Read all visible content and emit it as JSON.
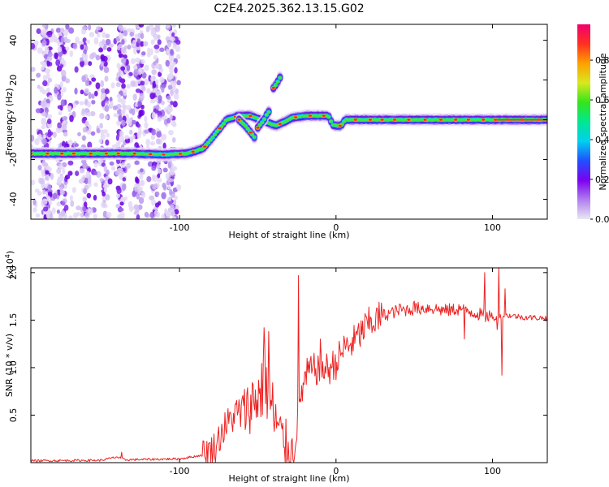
{
  "title": "C2E4.2025.362.13.15.G02",
  "chart_data": [
    {
      "type": "heatmap",
      "name": "spectrogram",
      "xlabel": "Height of straight line (km)",
      "ylabel": "Frequency (Hz)",
      "xlim": [
        -195,
        135
      ],
      "ylim": [
        -50,
        48
      ],
      "x_ticks": [
        -100,
        0,
        100
      ],
      "x_tick_labels": [
        "-100",
        "0",
        "100"
      ],
      "y_ticks": [
        -40,
        -20,
        0,
        20,
        40
      ],
      "y_tick_labels": [
        "-40",
        "-20",
        "0",
        "20",
        "40"
      ],
      "noise_region_x": [
        -195,
        -100
      ],
      "noise_frequency_range": [
        -50,
        48
      ],
      "tracks": [
        {
          "name": "main-trace",
          "points": [
            [
              -195,
              -17
            ],
            [
              -160,
              -17
            ],
            [
              -130,
              -17
            ],
            [
              -110,
              -17.5
            ],
            [
              -95,
              -17
            ],
            [
              -85,
              -14.5
            ],
            [
              -80,
              -10
            ],
            [
              -75,
              -5
            ],
            [
              -70,
              0
            ],
            [
              -62,
              2
            ],
            [
              -55,
              2
            ],
            [
              -48,
              0
            ],
            [
              -42,
              -2
            ],
            [
              -38,
              -3
            ],
            [
              -33,
              -1
            ],
            [
              -28,
              1
            ],
            [
              -20,
              2
            ],
            [
              -10,
              2
            ],
            [
              -5,
              2
            ],
            [
              -2,
              -2.5
            ],
            [
              0,
              -3
            ],
            [
              3,
              -3
            ],
            [
              6,
              0
            ],
            [
              15,
              0
            ],
            [
              40,
              0
            ],
            [
              70,
              0
            ],
            [
              100,
              0
            ],
            [
              105,
              0
            ],
            [
              135,
              0
            ]
          ]
        },
        {
          "name": "branch-trace",
          "points": [
            [
              -62,
              0
            ],
            [
              -58,
              -3
            ],
            [
              -55,
              -6
            ],
            [
              -52,
              -9
            ]
          ]
        },
        {
          "name": "upper-branch",
          "points": [
            [
              -50,
              -4
            ],
            [
              -46,
              0
            ],
            [
              -44,
              3
            ],
            [
              -42,
              5
            ]
          ]
        },
        {
          "name": "blob",
          "points": [
            [
              -40,
              16
            ],
            [
              -38,
              18
            ],
            [
              -36,
              21
            ],
            [
              -35,
              22
            ]
          ]
        }
      ],
      "colorbar": {
        "label": "Normalized spectral amplitude",
        "ticks": [
          0.0,
          0.2,
          0.4,
          0.6,
          0.8
        ],
        "tick_labels": [
          "0.0",
          "0.2",
          "0.4",
          "0.6",
          "0.8"
        ],
        "range": [
          0,
          0.98
        ],
        "colors": [
          "#e8e8f2",
          "#b07df0",
          "#7b00f0",
          "#2050ff",
          "#00d0f0",
          "#00e890",
          "#33e61a",
          "#d8e81e",
          "#ffa000",
          "#ff3020",
          "#f00070"
        ]
      }
    },
    {
      "type": "line",
      "name": "snr",
      "xlabel": "Height of straight line (km)",
      "ylabel": "SNR (10 * v/v)",
      "y_exponent_label": "(x10",
      "y_exponent_value": "4",
      "xlim": [
        -195,
        135
      ],
      "ylim": [
        0,
        2.05
      ],
      "x_ticks": [
        -100,
        0,
        100
      ],
      "x_tick_labels": [
        "-100",
        "0",
        "100"
      ],
      "y_ticks": [
        0.5,
        1.0,
        1.5,
        2.0
      ],
      "y_tick_labels": [
        "0.5",
        "1.0",
        "1.5",
        "2.0"
      ],
      "color": "#ee2222",
      "trend": [
        [
          -195,
          0.02
        ],
        [
          -150,
          0.025
        ],
        [
          -140,
          0.06
        ],
        [
          -135,
          0.03
        ],
        [
          -100,
          0.04
        ],
        [
          -85,
          0.08
        ],
        [
          -78,
          0.15
        ],
        [
          -72,
          0.35
        ],
        [
          -65,
          0.5
        ],
        [
          -58,
          0.55
        ],
        [
          -50,
          0.7
        ],
        [
          -45,
          0.85
        ],
        [
          -40,
          0.5
        ],
        [
          -35,
          0.25
        ],
        [
          -27,
          0.1
        ],
        [
          -25,
          0.4
        ],
        [
          -22,
          0.75
        ],
        [
          -18,
          0.95
        ],
        [
          -10,
          1.0
        ],
        [
          -5,
          0.98
        ],
        [
          0,
          1.05
        ],
        [
          5,
          1.2
        ],
        [
          12,
          1.28
        ],
        [
          20,
          1.45
        ],
        [
          30,
          1.55
        ],
        [
          40,
          1.6
        ],
        [
          50,
          1.62
        ],
        [
          60,
          1.63
        ],
        [
          70,
          1.6
        ],
        [
          80,
          1.62
        ],
        [
          90,
          1.57
        ],
        [
          100,
          1.52
        ],
        [
          110,
          1.55
        ],
        [
          120,
          1.53
        ],
        [
          135,
          1.52
        ]
      ],
      "spikes": [
        [
          -137,
          0.11
        ],
        [
          -46,
          1.42
        ],
        [
          -43,
          1.38
        ],
        [
          -24,
          1.97
        ],
        [
          -10,
          1.3
        ],
        [
          41,
          1.67
        ],
        [
          50,
          1.7
        ],
        [
          82,
          1.3
        ],
        [
          95,
          2.0
        ],
        [
          98,
          1.6
        ],
        [
          103,
          1.4
        ],
        [
          104,
          2.05
        ],
        [
          106,
          0.92
        ],
        [
          108,
          1.83
        ]
      ]
    }
  ]
}
